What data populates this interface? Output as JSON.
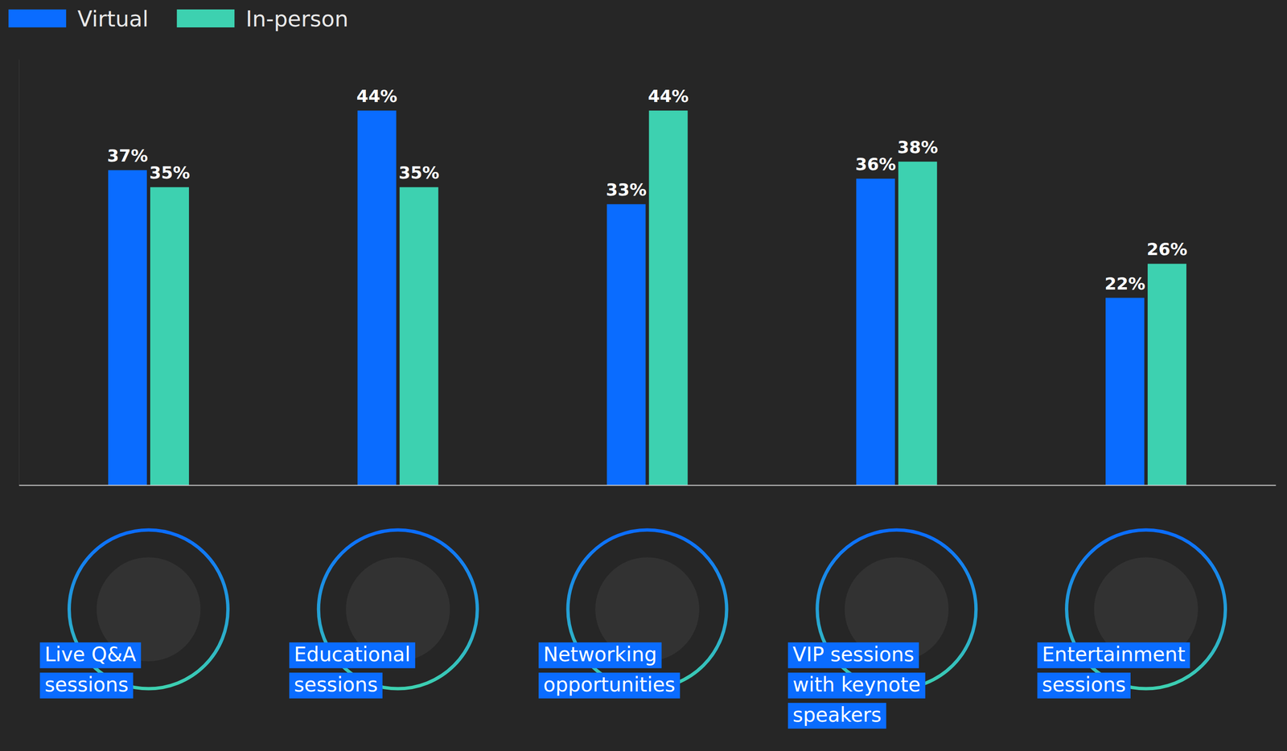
{
  "chart_data": {
    "type": "bar",
    "categories": [
      "Live Q&A sessions",
      "Educational sessions",
      "Networking opportunities",
      "VIP sessions with keynote speakers",
      "Entertainment sessions"
    ],
    "series": [
      {
        "name": "Virtual",
        "color": "#0a6cff",
        "values": [
          37,
          44,
          33,
          36,
          22
        ],
        "value_labels": [
          "37%",
          "44%",
          "33%",
          "36%",
          "22%"
        ]
      },
      {
        "name": "In-person",
        "color": "#3dd1b0",
        "values": [
          35,
          35,
          44,
          38,
          26
        ],
        "value_labels": [
          "35%",
          "35%",
          "44%",
          "38%",
          "26%"
        ]
      }
    ],
    "ylim": [
      0,
      50
    ],
    "data_labels": true,
    "tick_labels": "x",
    "legend": "top-left",
    "grid": false
  }
}
